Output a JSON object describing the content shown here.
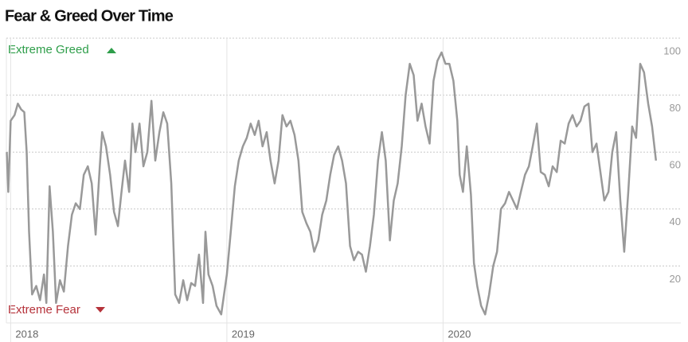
{
  "chart_data": {
    "type": "line",
    "title": "Fear & Greed Over Time",
    "annotations": [
      "Extreme Greed",
      "Extreme Fear"
    ],
    "color": "#999999",
    "grid": true,
    "xlim": [
      2017.98,
      2021.1
    ],
    "xticks": [
      2018,
      2019,
      2020
    ],
    "ylim": [
      0,
      100
    ],
    "yticks": [
      20,
      40,
      60,
      80,
      100
    ],
    "x": [
      2017.982,
      2017.989,
      2018.0,
      2018.018,
      2018.033,
      2018.048,
      2018.063,
      2018.074,
      2018.085,
      2018.099,
      2018.118,
      2018.136,
      2018.154,
      2018.165,
      2018.18,
      2018.195,
      2018.21,
      2018.228,
      2018.246,
      2018.265,
      2018.283,
      2018.301,
      2018.32,
      2018.338,
      2018.357,
      2018.375,
      2018.393,
      2018.412,
      2018.423,
      2018.441,
      2018.46,
      2018.478,
      2018.496,
      2018.511,
      2018.529,
      2018.548,
      2018.563,
      2018.577,
      2018.596,
      2018.614,
      2018.632,
      2018.651,
      2018.669,
      2018.688,
      2018.706,
      2018.724,
      2018.743,
      2018.761,
      2018.779,
      2018.798,
      2018.816,
      2018.835,
      2018.853,
      2018.871,
      2018.89,
      2018.901,
      2018.915,
      2018.934,
      2018.952,
      2018.974,
      2019.0,
      2019.018,
      2019.037,
      2019.055,
      2019.074,
      2019.092,
      2019.11,
      2019.129,
      2019.147,
      2019.165,
      2019.184,
      2019.202,
      2019.221,
      2019.239,
      2019.257,
      2019.276,
      2019.294,
      2019.313,
      2019.331,
      2019.349,
      2019.368,
      2019.386,
      2019.404,
      2019.423,
      2019.441,
      2019.46,
      2019.478,
      2019.496,
      2019.515,
      2019.533,
      2019.551,
      2019.57,
      2019.588,
      2019.607,
      2019.625,
      2019.643,
      2019.662,
      2019.68,
      2019.699,
      2019.717,
      2019.735,
      2019.754,
      2019.772,
      2019.79,
      2019.809,
      2019.827,
      2019.846,
      2019.864,
      2019.882,
      2019.901,
      2019.919,
      2019.938,
      2019.956,
      2019.974,
      2019.993,
      2020.011,
      2020.029,
      2020.048,
      2020.066,
      2020.077,
      2020.092,
      2020.11,
      2020.129,
      2020.143,
      2020.158,
      2020.176,
      2020.195,
      2020.213,
      2020.232,
      2020.25,
      2020.268,
      2020.287,
      2020.305,
      2020.324,
      2020.342,
      2020.36,
      2020.379,
      2020.397,
      2020.415,
      2020.434,
      2020.452,
      2020.471,
      2020.489,
      2020.507,
      2020.526,
      2020.544,
      2020.563,
      2020.581,
      2020.599,
      2020.618,
      2020.636,
      2020.654,
      2020.673,
      2020.691,
      2020.71,
      2020.728,
      2020.746,
      2020.765,
      2020.783,
      2020.801,
      2020.82,
      2020.838,
      2020.857,
      2020.875,
      2020.893,
      2020.912,
      2020.93,
      2020.949,
      2020.967,
      2020.985
    ],
    "values": [
      60,
      46,
      71,
      73,
      77,
      75,
      74,
      60,
      32,
      10,
      13,
      8,
      17,
      7,
      48,
      32,
      7,
      15,
      11,
      27,
      38,
      42,
      40,
      52,
      55,
      49,
      31,
      55,
      67,
      62,
      52,
      39,
      34,
      45,
      57,
      46,
      70,
      60,
      70,
      55,
      60,
      78,
      57,
      67,
      74,
      70,
      49,
      10,
      7,
      15,
      8,
      14,
      13,
      24,
      7,
      32,
      17,
      13,
      6,
      3,
      17,
      32,
      48,
      57,
      62,
      65,
      70,
      66,
      71,
      62,
      67,
      57,
      49,
      57,
      73,
      69,
      71,
      66,
      57,
      39,
      35,
      32,
      25,
      29,
      38,
      43,
      52,
      59,
      62,
      57,
      49,
      27,
      22,
      25,
      24,
      18,
      27,
      38,
      57,
      67,
      57,
      29,
      43,
      49,
      62,
      80,
      91,
      87,
      71,
      77,
      69,
      63,
      85,
      92,
      95,
      91,
      91,
      85,
      71,
      52,
      46,
      62,
      45,
      21,
      13,
      6,
      3,
      10,
      20,
      25,
      40,
      42,
      46,
      43,
      40,
      46,
      52,
      55,
      62,
      70,
      53,
      52,
      48,
      55,
      53,
      64,
      63,
      70,
      73,
      69,
      71,
      76,
      77,
      60,
      63,
      53,
      43,
      46,
      60,
      67,
      43,
      25,
      46,
      69,
      65,
      91,
      88,
      77,
      69,
      57
    ]
  }
}
